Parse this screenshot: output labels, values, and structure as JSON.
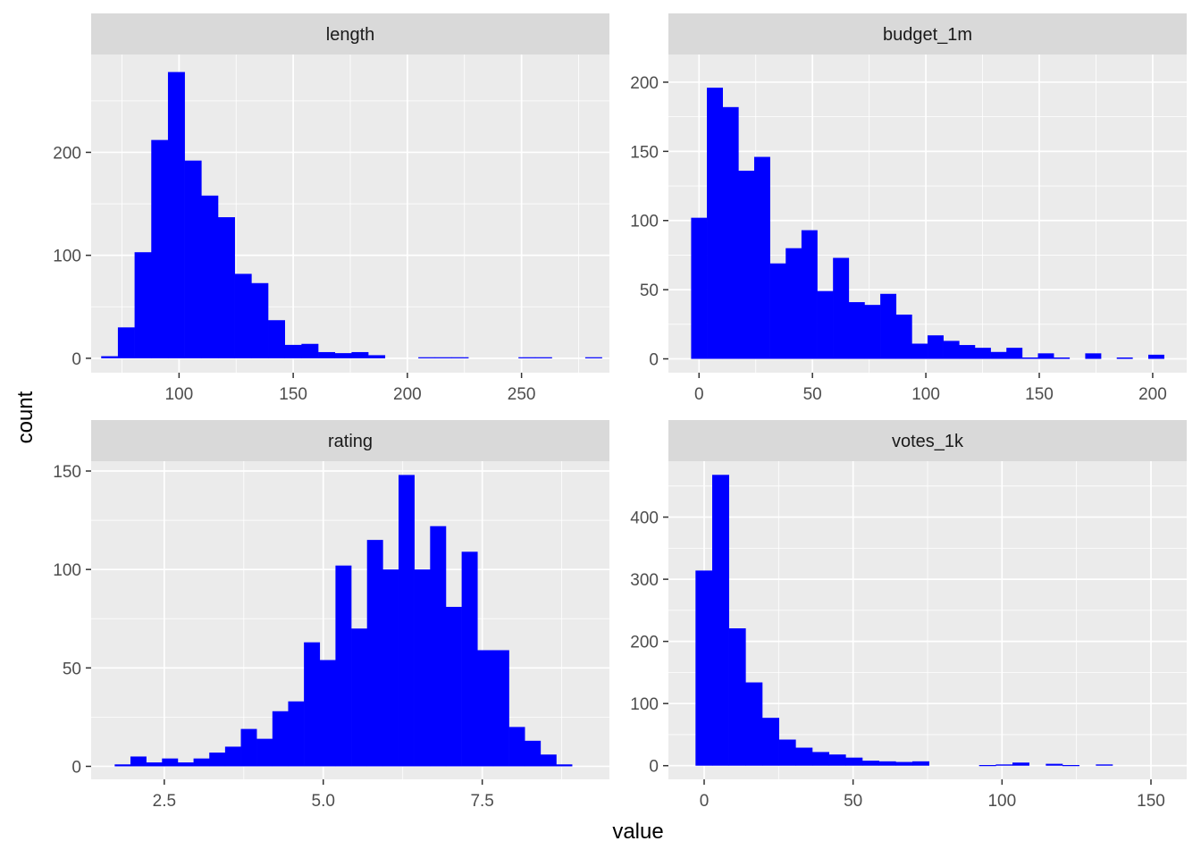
{
  "chart_data": {
    "type": "bar",
    "layout": "faceted histograms, 2x2 grid, free scales",
    "xlabel": "value",
    "ylabel": "count",
    "bar_color": "#0000ff",
    "panel_bg": "#ebebeb",
    "strip_bg": "#d9d9d9",
    "grid_color": "#ffffff",
    "facets": [
      {
        "name": "length",
        "xlim": [
          61.5,
          288.5
        ],
        "ylim": [
          -14,
          295
        ],
        "xticks": [
          100,
          150,
          200,
          250
        ],
        "xtick_labels": [
          "100",
          "150",
          "200",
          "250"
        ],
        "yticks": [
          0,
          100,
          200
        ],
        "ytick_labels": [
          "0",
          "100",
          "200"
        ],
        "bin_start": 65.9,
        "bin_width": 7.31,
        "counts": [
          2,
          30,
          103,
          212,
          278,
          192,
          158,
          137,
          82,
          73,
          37,
          13,
          14,
          6,
          5,
          6,
          3,
          0,
          0,
          1,
          1,
          1,
          0,
          0,
          0,
          1,
          1,
          0,
          0,
          1
        ]
      },
      {
        "name": "budget_1m",
        "xlim": [
          -13.5,
          215
        ],
        "ylim": [
          -10,
          220
        ],
        "xticks": [
          0,
          50,
          100,
          150,
          200
        ],
        "xtick_labels": [
          "0",
          "50",
          "100",
          "150",
          "200"
        ],
        "yticks": [
          0,
          50,
          100,
          150,
          200
        ],
        "ytick_labels": [
          "0",
          "50",
          "100",
          "150",
          "200"
        ],
        "bin_start": -3.49,
        "bin_width": 6.95,
        "counts": [
          102,
          196,
          182,
          136,
          146,
          69,
          80,
          93,
          49,
          73,
          41,
          39,
          47,
          32,
          11,
          17,
          13,
          10,
          8,
          5,
          8,
          1,
          4,
          1,
          0,
          4,
          0,
          1,
          0,
          3
        ]
      },
      {
        "name": "rating",
        "xlim": [
          1.35,
          9.5
        ],
        "ylim": [
          -6.6,
          155
        ],
        "xticks": [
          2.5,
          5.0,
          7.5
        ],
        "xtick_labels": [
          "2.5",
          "5.0",
          "7.5"
        ],
        "yticks": [
          0,
          50,
          100,
          150
        ],
        "ytick_labels": [
          "0",
          "50",
          "100",
          "150"
        ],
        "bin_start": 1.72,
        "bin_width": 0.248,
        "counts": [
          1,
          5,
          2,
          4,
          2,
          4,
          7,
          10,
          19,
          14,
          28,
          33,
          63,
          54,
          102,
          70,
          115,
          100,
          148,
          100,
          122,
          81,
          109,
          59,
          59,
          20,
          13,
          6,
          1,
          0
        ]
      },
      {
        "name": "votes_1k",
        "xlim": [
          -12,
          162
        ],
        "ylim": [
          -22,
          490
        ],
        "xticks": [
          0,
          50,
          100,
          150
        ],
        "xtick_labels": [
          "0",
          "50",
          "100",
          "150"
        ],
        "yticks": [
          0,
          100,
          200,
          300,
          400
        ],
        "ytick_labels": [
          "0",
          "100",
          "200",
          "300",
          "400"
        ],
        "bin_start": -2.9,
        "bin_width": 5.6,
        "counts": [
          314,
          468,
          221,
          134,
          77,
          42,
          29,
          22,
          18,
          13,
          8,
          7,
          6,
          7,
          0,
          0,
          0,
          1,
          2,
          5,
          0,
          3,
          1,
          0,
          2,
          0,
          0,
          0,
          0,
          0
        ]
      }
    ]
  }
}
